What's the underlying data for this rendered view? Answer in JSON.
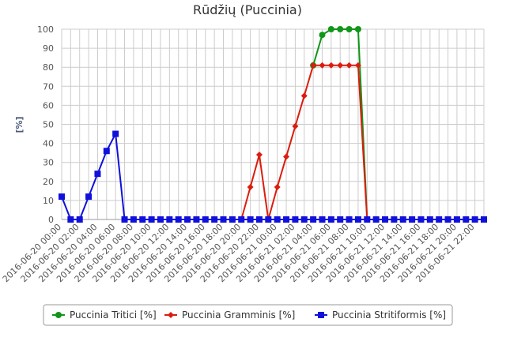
{
  "chart_data": {
    "type": "line",
    "title": "Rūdžių (Puccinia)",
    "y_label": "[%]",
    "categories": [
      "2016-06-20 00:00",
      null,
      "2016-06-20 02:00",
      null,
      "2016-06-20 04:00",
      null,
      "2016-06-20 06:00",
      null,
      "2016-06-20 08:00",
      null,
      "2016-06-20 10:00",
      null,
      "2016-06-20 12:00",
      null,
      "2016-06-20 14:00",
      null,
      "2016-06-20 16:00",
      null,
      "2016-06-20 18:00",
      null,
      "2016-06-20 20:00",
      null,
      "2016-06-20 22:00",
      null,
      "2016-06-21 00:00",
      null,
      "2016-06-21 02:00",
      null,
      "2016-06-21 04:00",
      null,
      "2016-06-21 06:00",
      null,
      "2016-06-21 08:00",
      null,
      "2016-06-21 10:00",
      null,
      "2016-06-21 12:00",
      null,
      "2016-06-21 14:00",
      null,
      "2016-06-21 16:00",
      null,
      "2016-06-21 18:00",
      null,
      "2016-06-21 20:00",
      null,
      "2016-06-21 22:00",
      null
    ],
    "series": [
      {
        "name": "Puccinia Tritici [%]",
        "color": "#109618",
        "marker": "circle",
        "values": [
          null,
          null,
          null,
          null,
          null,
          null,
          null,
          null,
          null,
          null,
          null,
          null,
          null,
          null,
          null,
          null,
          null,
          null,
          null,
          null,
          null,
          null,
          null,
          null,
          null,
          null,
          null,
          null,
          81,
          97,
          100,
          100,
          100,
          100,
          0,
          0,
          0,
          0,
          0,
          0,
          0,
          0,
          0,
          0,
          0,
          0,
          0,
          0
        ]
      },
      {
        "name": "Puccinia Gramminis [%]",
        "color": "#dc1c0c",
        "marker": "diamond",
        "values": [
          null,
          null,
          null,
          null,
          null,
          null,
          null,
          null,
          null,
          null,
          null,
          null,
          null,
          null,
          null,
          null,
          null,
          null,
          null,
          null,
          0,
          17,
          34,
          0,
          17,
          33,
          49,
          65,
          81,
          81,
          81,
          81,
          81,
          81,
          0,
          0,
          0,
          0,
          0,
          0,
          0,
          0,
          0,
          0,
          0,
          0,
          0,
          0
        ]
      },
      {
        "name": "Puccinia Stritiformis [%]",
        "color": "#1010dd",
        "marker": "square",
        "values": [
          12,
          0,
          0,
          12,
          24,
          36,
          45,
          0,
          0,
          0,
          0,
          0,
          0,
          0,
          0,
          0,
          0,
          0,
          0,
          0,
          0,
          0,
          0,
          0,
          0,
          0,
          0,
          0,
          0,
          0,
          0,
          0,
          0,
          0,
          0,
          0,
          0,
          0,
          0,
          0,
          0,
          0,
          0,
          0,
          0,
          0,
          0,
          0
        ]
      }
    ],
    "ylim": [
      0,
      100
    ],
    "yticks": [
      0,
      10,
      20,
      30,
      40,
      50,
      60,
      70,
      80,
      90,
      100
    ],
    "grid": true,
    "legend": "bottom"
  }
}
